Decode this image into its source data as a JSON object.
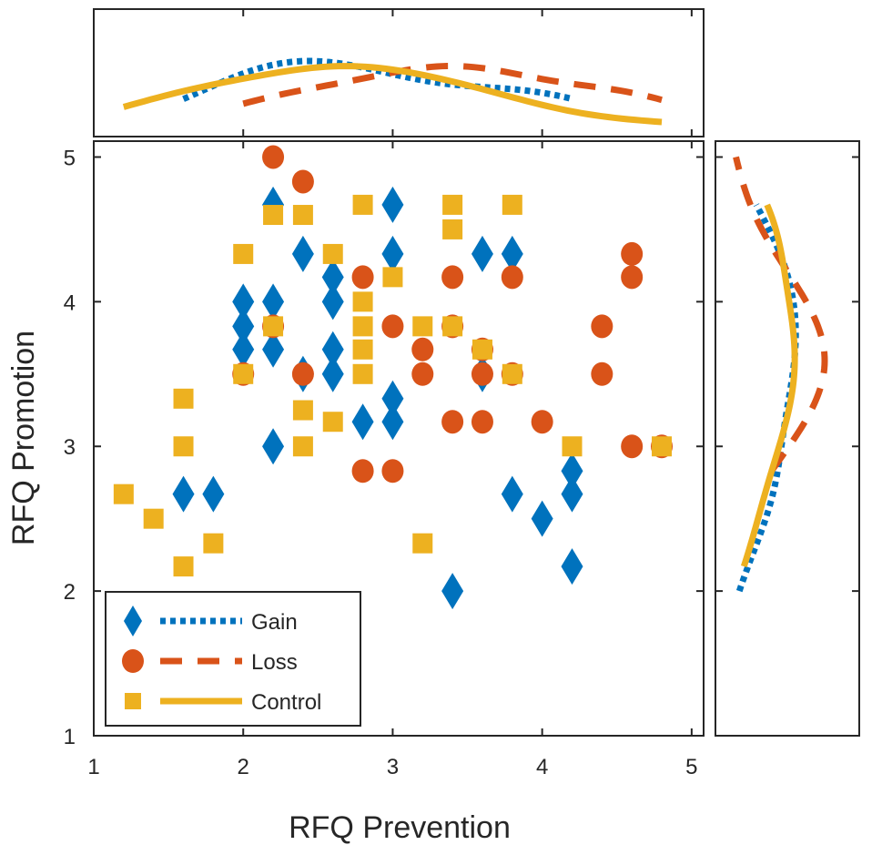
{
  "chart_data": {
    "type": "scatter",
    "xlabel": "RFQ Prevention",
    "ylabel": "RFQ Promotion",
    "xlim": [
      1,
      5.08
    ],
    "ylim": [
      1,
      5.11
    ],
    "xticks": [
      1,
      2,
      3,
      4,
      5
    ],
    "yticks": [
      1,
      2,
      3,
      4,
      5
    ],
    "legend_position": "bottom-left",
    "marginals": {
      "top": "kernel density of RFQ Prevention per group",
      "right": "kernel density of RFQ Promotion per group"
    },
    "series": [
      {
        "name": "Gain",
        "marker": "diamond",
        "line": "dotted",
        "color": "#0072BD",
        "points": [
          [
            2.2,
            4.67
          ],
          [
            3,
            4.67
          ],
          [
            2.4,
            4.33
          ],
          [
            3,
            4.33
          ],
          [
            3.6,
            4.33
          ],
          [
            3.8,
            4.33
          ],
          [
            2.6,
            4.17
          ],
          [
            2,
            4
          ],
          [
            2.2,
            4
          ],
          [
            2.6,
            4
          ],
          [
            2,
            3.83
          ],
          [
            2,
            3.67
          ],
          [
            2.2,
            3.67
          ],
          [
            2.6,
            3.67
          ],
          [
            2.4,
            3.5
          ],
          [
            2.6,
            3.5
          ],
          [
            3.6,
            3.5
          ],
          [
            3,
            3.33
          ],
          [
            3,
            3.17
          ],
          [
            2.8,
            3.17
          ],
          [
            2.2,
            3
          ],
          [
            1.6,
            2.67
          ],
          [
            1.8,
            2.67
          ],
          [
            3.8,
            2.67
          ],
          [
            4,
            2.5
          ],
          [
            4.2,
            2.67
          ],
          [
            4.2,
            2.83
          ],
          [
            4.2,
            2.17
          ],
          [
            3.4,
            2
          ]
        ]
      },
      {
        "name": "Loss",
        "marker": "circle",
        "line": "dashed",
        "color": "#D95319",
        "points": [
          [
            2.2,
            5
          ],
          [
            2.4,
            4.83
          ],
          [
            2.8,
            4.17
          ],
          [
            3.4,
            4.17
          ],
          [
            3.8,
            4.17
          ],
          [
            4.6,
            4.33
          ],
          [
            4.6,
            4.17
          ],
          [
            2.2,
            3.83
          ],
          [
            3,
            3.83
          ],
          [
            3.4,
            3.83
          ],
          [
            4.4,
            3.83
          ],
          [
            3.2,
            3.67
          ],
          [
            3.6,
            3.67
          ],
          [
            2,
            3.5
          ],
          [
            2.4,
            3.5
          ],
          [
            3.2,
            3.5
          ],
          [
            3.6,
            3.5
          ],
          [
            3.8,
            3.5
          ],
          [
            4.4,
            3.5
          ],
          [
            3.4,
            3.17
          ],
          [
            3.6,
            3.17
          ],
          [
            4,
            3.17
          ],
          [
            4.6,
            3
          ],
          [
            4.8,
            3
          ],
          [
            2.8,
            2.83
          ],
          [
            3,
            2.83
          ]
        ]
      },
      {
        "name": "Control",
        "marker": "square",
        "line": "solid",
        "color": "#EDB120",
        "points": [
          [
            2.2,
            4.6
          ],
          [
            2.4,
            4.6
          ],
          [
            2.8,
            4.67
          ],
          [
            3.4,
            4.67
          ],
          [
            3.8,
            4.67
          ],
          [
            3.4,
            4.5
          ],
          [
            2,
            4.33
          ],
          [
            2.6,
            4.33
          ],
          [
            3,
            4.17
          ],
          [
            2.8,
            4
          ],
          [
            2.2,
            3.83
          ],
          [
            2.8,
            3.83
          ],
          [
            3.2,
            3.83
          ],
          [
            3.4,
            3.83
          ],
          [
            2.8,
            3.67
          ],
          [
            3.6,
            3.67
          ],
          [
            2,
            3.5
          ],
          [
            2.8,
            3.5
          ],
          [
            3.8,
            3.5
          ],
          [
            1.6,
            3.33
          ],
          [
            2.4,
            3.25
          ],
          [
            2.6,
            3.17
          ],
          [
            1.6,
            3
          ],
          [
            2.4,
            3
          ],
          [
            4.2,
            3
          ],
          [
            4.8,
            3
          ],
          [
            1.2,
            2.67
          ],
          [
            1.4,
            2.5
          ],
          [
            1.8,
            2.33
          ],
          [
            3.2,
            2.33
          ],
          [
            1.6,
            2.17
          ]
        ]
      }
    ]
  }
}
